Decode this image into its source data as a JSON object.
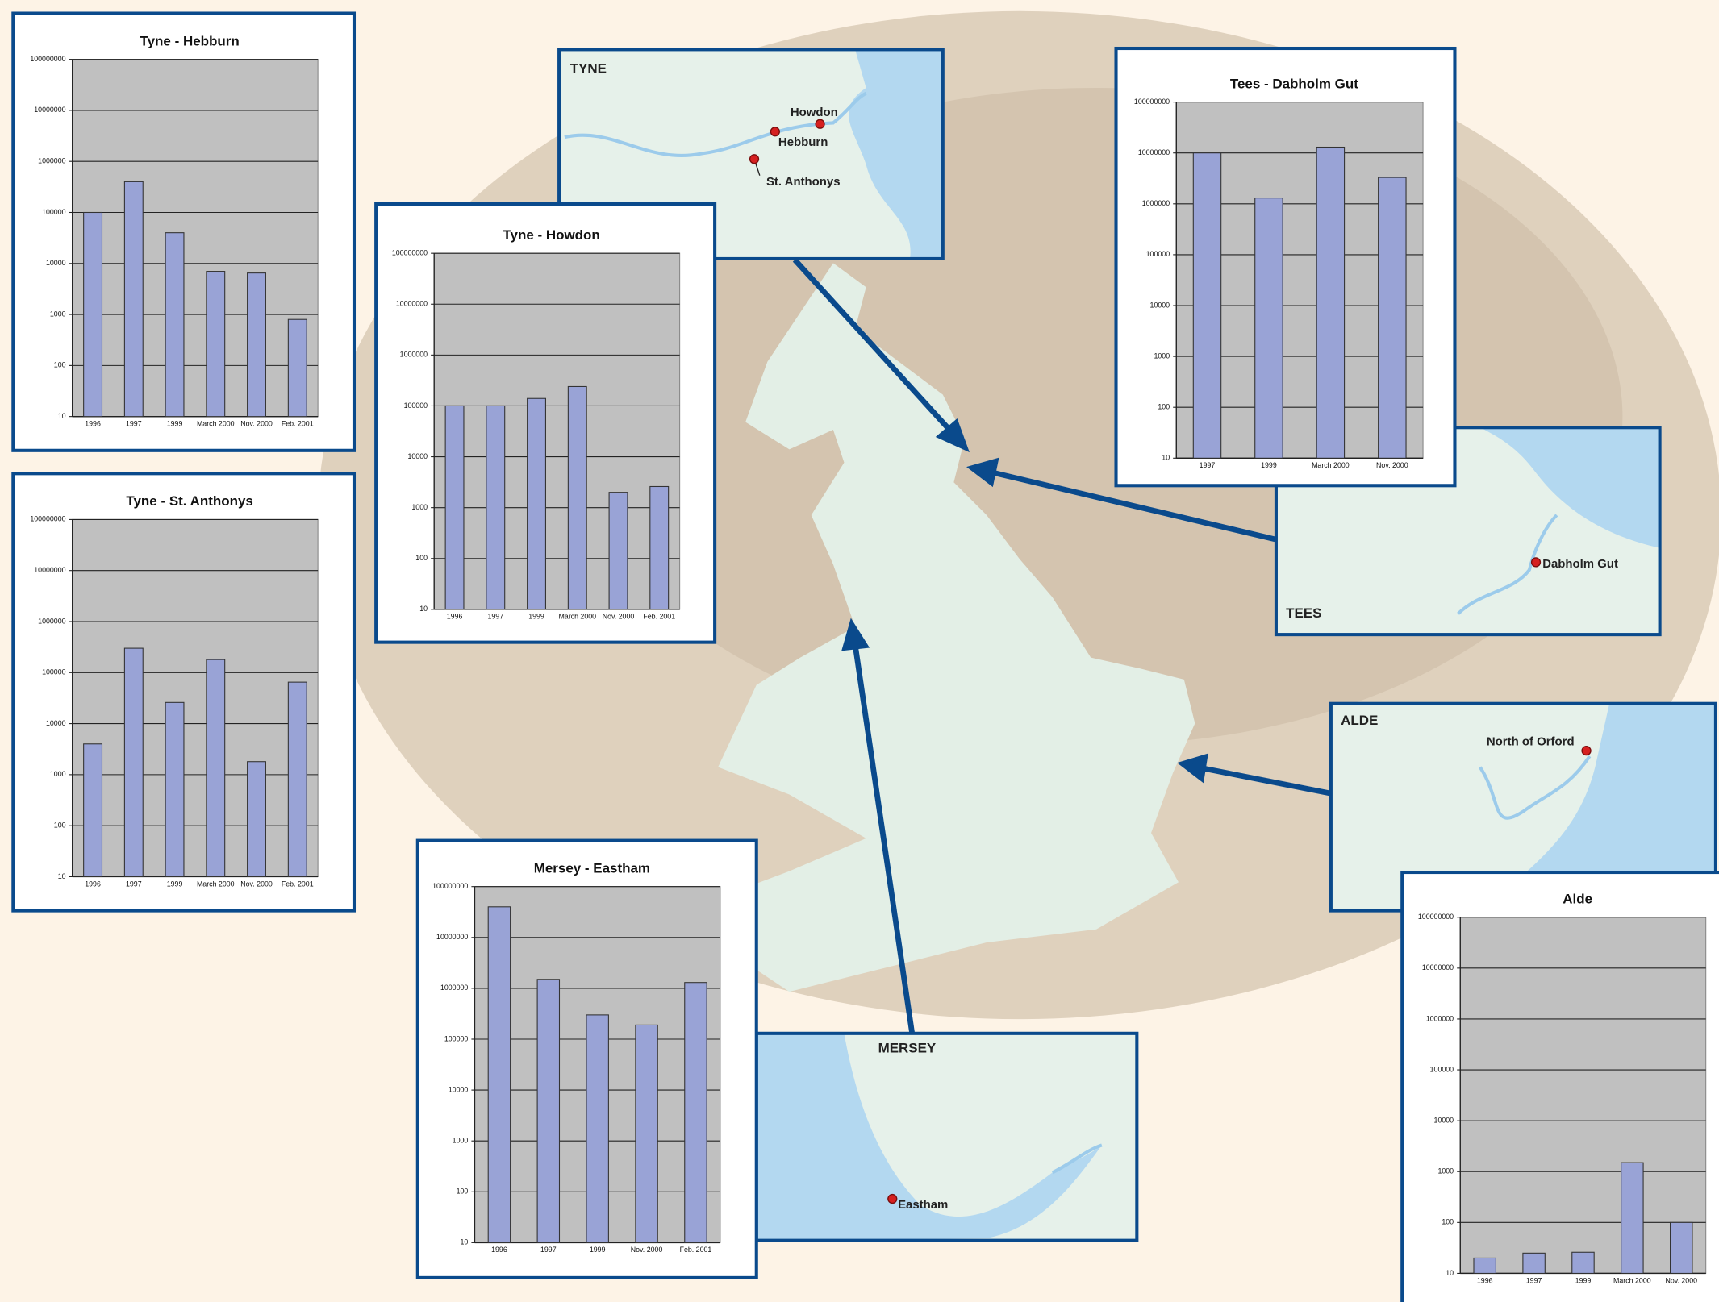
{
  "chart_data": [
    {
      "type": "bar",
      "title": "Tyne - Hebburn",
      "categories": [
        "1996",
        "1997",
        "1999",
        "March 2000",
        "Nov. 2000",
        "Feb. 2001"
      ],
      "values": [
        100000,
        400000,
        40000,
        7000,
        6500,
        800
      ],
      "color": "#99a3d6",
      "log_scale": true,
      "grid": true,
      "ylim": [
        10,
        100000000
      ],
      "yticks": [
        10,
        100,
        1000,
        10000,
        100000,
        1000000,
        10000000,
        100000000
      ]
    },
    {
      "type": "bar",
      "title": "Tyne - St. Anthonys",
      "categories": [
        "1996",
        "1997",
        "1999",
        "March 2000",
        "Nov. 2000",
        "Feb. 2001"
      ],
      "values": [
        4000,
        300000,
        26000,
        180000,
        1800,
        65000
      ],
      "color": "#99a3d6",
      "log_scale": true,
      "grid": true,
      "ylim": [
        10,
        100000000
      ],
      "yticks": [
        10,
        100,
        1000,
        10000,
        100000,
        1000000,
        10000000,
        100000000
      ]
    },
    {
      "type": "bar",
      "title": "Tyne - Howdon",
      "categories": [
        "1996",
        "1997",
        "1999",
        "March 2000",
        "Nov. 2000",
        "Feb. 2001"
      ],
      "values": [
        100000,
        100000,
        140000,
        240000,
        2000,
        2600
      ],
      "color": "#99a3d6",
      "log_scale": true,
      "grid": true,
      "ylim": [
        10,
        100000000
      ],
      "yticks": [
        10,
        100,
        1000,
        10000,
        100000,
        1000000,
        10000000,
        100000000
      ]
    },
    {
      "type": "bar",
      "title": "Tees - Dabholm Gut",
      "categories": [
        "1997",
        "1999",
        "March 2000",
        "Nov. 2000"
      ],
      "values": [
        10000000,
        1300000,
        13000000,
        3300000
      ],
      "color": "#99a3d6",
      "log_scale": true,
      "grid": true,
      "ylim": [
        10,
        100000000
      ],
      "yticks": [
        10,
        100,
        1000,
        10000,
        100000,
        1000000,
        10000000,
        100000000
      ]
    },
    {
      "type": "bar",
      "title": "Mersey - Eastham",
      "categories": [
        "1996",
        "1997",
        "1999",
        "Nov. 2000",
        "Feb. 2001"
      ],
      "values": [
        40000000,
        1500000,
        300000,
        190000,
        1300000
      ],
      "color": "#99a3d6",
      "log_scale": true,
      "grid": true,
      "ylim": [
        10,
        100000000
      ],
      "yticks": [
        10,
        100,
        1000,
        10000,
        100000,
        1000000,
        10000000,
        100000000
      ]
    },
    {
      "type": "bar",
      "title": "Alde",
      "categories": [
        "1996",
        "1997",
        "1999",
        "March 2000",
        "Nov. 2000"
      ],
      "values": [
        20,
        25,
        26,
        1500,
        100
      ],
      "color": "#99a3d6",
      "log_scale": true,
      "grid": true,
      "ylim": [
        10,
        100000000
      ],
      "yticks": [
        10,
        100,
        1000,
        10000,
        100000,
        1000000,
        10000000,
        100000000
      ]
    }
  ],
  "maps": [
    {
      "title": "TYNE",
      "places": [
        "Howdon",
        "Hebburn",
        "St. Anthonys"
      ]
    },
    {
      "title": "TEES",
      "places": [
        "Dabholm Gut"
      ]
    },
    {
      "title": "ALDE",
      "places": [
        "North of Orford"
      ]
    },
    {
      "title": "MERSEY",
      "places": [
        "Eastham"
      ]
    }
  ]
}
